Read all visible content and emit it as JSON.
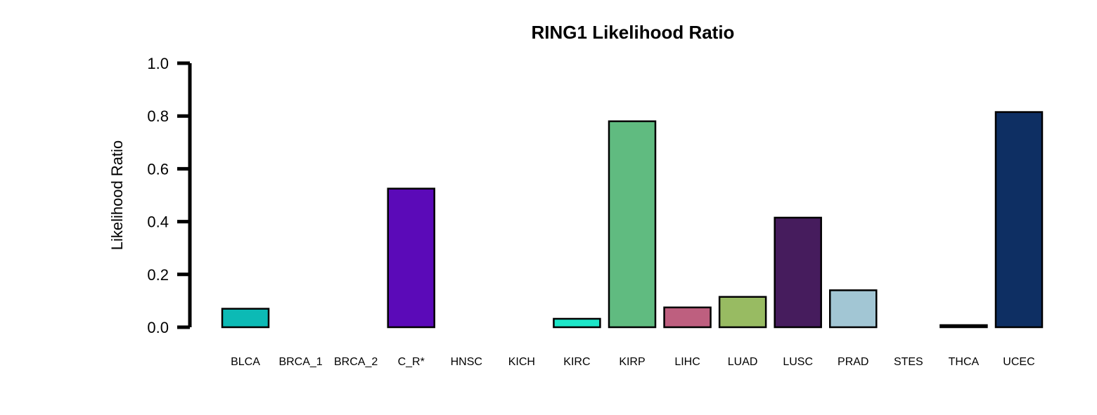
{
  "chart_data": {
    "type": "bar",
    "title": "RING1 Likelihood Ratio",
    "xlabel": "",
    "ylabel": "Likelihood Ratio",
    "ylim": [
      0,
      1.0
    ],
    "yticks": [
      "0.0",
      "0.2",
      "0.4",
      "0.6",
      "0.8",
      "1.0"
    ],
    "grid": false,
    "categories": [
      "BLCA",
      "BRCA_1",
      "BRCA_2",
      "C_R*",
      "HNSC",
      "KICH",
      "KIRC",
      "KIRP",
      "LIHC",
      "LUAD",
      "LUSC",
      "PRAD",
      "STES",
      "THCA",
      "UCEC"
    ],
    "values": [
      0.07,
      0.0,
      0.0,
      0.525,
      0.0,
      0.0,
      0.032,
      0.78,
      0.075,
      0.115,
      0.415,
      0.14,
      0.0,
      0.008,
      0.815
    ],
    "colors": [
      "#0cbab5",
      "#000000",
      "#000000",
      "#5b0ab8",
      "#000000",
      "#000000",
      "#1de6c8",
      "#60bb80",
      "#be5f7f",
      "#98bb62",
      "#461c5d",
      "#a2c6d4",
      "#000000",
      "#000000",
      "#0e2f63"
    ]
  }
}
